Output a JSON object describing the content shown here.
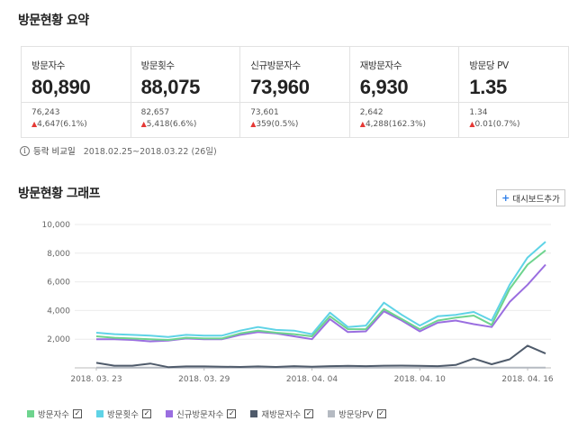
{
  "summary": {
    "title": "방문현황 요약",
    "cards": [
      {
        "label": "방문자수",
        "value": "80,890",
        "prev": "76,243",
        "change": "4,647(6.1%)"
      },
      {
        "label": "방문횟수",
        "value": "88,075",
        "prev": "82,657",
        "change": "5,418(6.6%)"
      },
      {
        "label": "신규방문자수",
        "value": "73,960",
        "prev": "73,601",
        "change": "359(0.5%)"
      },
      {
        "label": "재방문자수",
        "value": "6,930",
        "prev": "2,642",
        "change": "4,288(162.3%)"
      },
      {
        "label": "방문당 PV",
        "value": "1.35",
        "prev": "1.34",
        "change": "0.01(0.7%)"
      }
    ],
    "compare_label": "등락 비교일",
    "compare_range": "2018.02.25~2018.03.22 (26일)"
  },
  "graph": {
    "title": "방문현황 그래프",
    "dashboard_button": "대시보드추가",
    "info_icon": "info-icon",
    "add_icon": "plus-icon"
  },
  "colors": {
    "visitors": "#6ed48e",
    "visits": "#5fd3e6",
    "new_visitors": "#9a6ee0",
    "returning": "#4f5b6b",
    "pv": "#b5bac2",
    "up_arrow": "#e53935"
  },
  "chart_data": {
    "type": "line",
    "x": [
      "2018.03.23",
      "2018.03.24",
      "2018.03.25",
      "2018.03.26",
      "2018.03.27",
      "2018.03.28",
      "2018.03.29",
      "2018.03.30",
      "2018.03.31",
      "2018.04.01",
      "2018.04.02",
      "2018.04.03",
      "2018.04.04",
      "2018.04.05",
      "2018.04.06",
      "2018.04.07",
      "2018.04.08",
      "2018.04.09",
      "2018.04.10",
      "2018.04.11",
      "2018.04.12",
      "2018.04.13",
      "2018.04.14",
      "2018.04.15",
      "2018.04.16",
      "2018.04.17"
    ],
    "xticks": [
      "2018. 03. 23",
      "2018. 03. 29",
      "2018. 04. 04",
      "2018. 04. 10",
      "2018. 04. 16"
    ],
    "yticks": [
      "0",
      "2,000",
      "4,000",
      "6,000",
      "8,000",
      "10,000"
    ],
    "ylim": [
      0,
      10000
    ],
    "grid": true,
    "series": [
      {
        "name": "방문자수",
        "color": "#6ed48e",
        "values": [
          2200,
          2100,
          2050,
          2000,
          1950,
          2100,
          2050,
          2050,
          2400,
          2600,
          2450,
          2350,
          2200,
          3600,
          2700,
          2700,
          4100,
          3400,
          2700,
          3300,
          3500,
          3650,
          3000,
          5500,
          7200,
          8200
        ]
      },
      {
        "name": "방문횟수",
        "color": "#5fd3e6",
        "values": [
          2450,
          2350,
          2300,
          2250,
          2150,
          2300,
          2250,
          2250,
          2600,
          2850,
          2650,
          2600,
          2350,
          3850,
          2850,
          2950,
          4550,
          3700,
          2950,
          3600,
          3700,
          3900,
          3300,
          5800,
          7700,
          8800
        ]
      },
      {
        "name": "신규방문자수",
        "color": "#9a6ee0",
        "values": [
          2000,
          2000,
          1950,
          1850,
          1900,
          2050,
          2000,
          2000,
          2300,
          2500,
          2400,
          2200,
          2000,
          3400,
          2500,
          2550,
          3950,
          3300,
          2550,
          3150,
          3300,
          3050,
          2850,
          4600,
          5800,
          7200
        ]
      },
      {
        "name": "재방문자수",
        "color": "#4f5b6b",
        "values": [
          350,
          150,
          150,
          300,
          50,
          100,
          100,
          80,
          60,
          100,
          60,
          120,
          80,
          120,
          140,
          120,
          150,
          160,
          140,
          120,
          200,
          650,
          250,
          600,
          1550,
          1000
        ]
      },
      {
        "name": "방문당PV",
        "color": "#b5bac2",
        "values": [
          10,
          10,
          10,
          10,
          10,
          10,
          10,
          10,
          10,
          10,
          10,
          10,
          10,
          10,
          10,
          10,
          10,
          10,
          10,
          10,
          10,
          10,
          10,
          10,
          10,
          10
        ]
      }
    ]
  }
}
